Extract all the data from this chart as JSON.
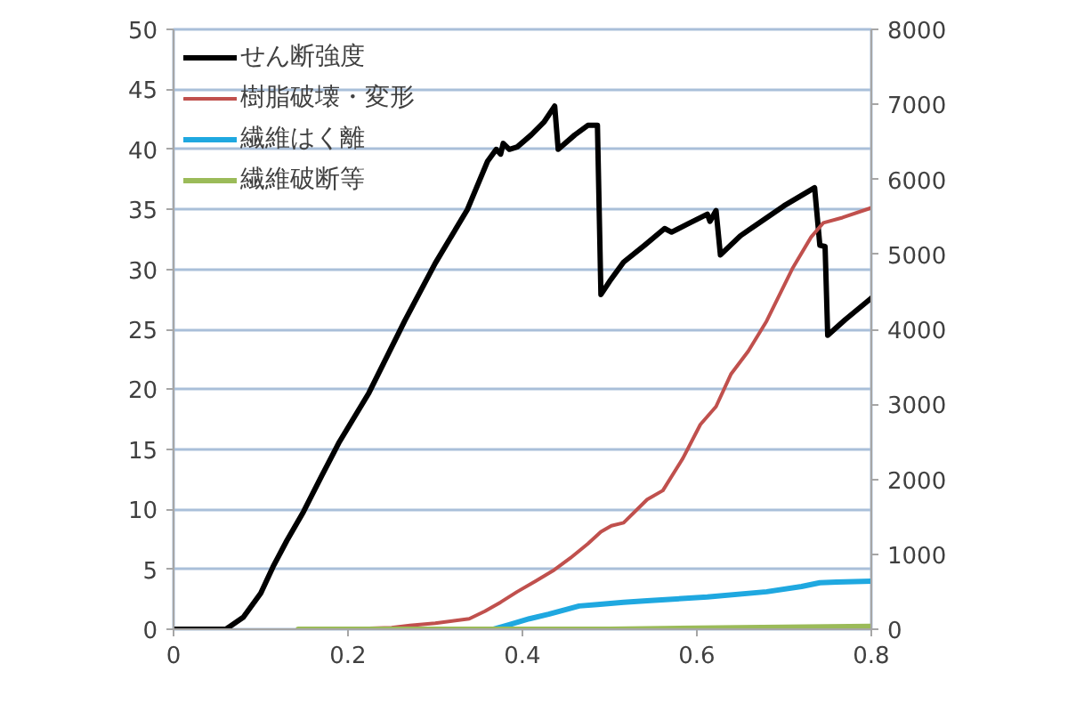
{
  "chart_data": {
    "type": "line",
    "legend": "top left",
    "grid": "y",
    "xlim": [
      0,
      0.8
    ],
    "xticks": [
      0,
      0.2,
      0.4,
      0.6,
      0.8
    ],
    "ylim": [
      0,
      50
    ],
    "yticks": [
      0,
      5,
      10,
      15,
      20,
      25,
      30,
      35,
      40,
      45,
      50
    ],
    "y2lim": [
      0,
      8000
    ],
    "y2ticks": [
      0,
      1000,
      2000,
      3000,
      4000,
      5000,
      6000,
      7000,
      8000
    ],
    "series": [
      {
        "name": "せん断強度",
        "color": "#000000",
        "x": [
          0,
          0.06,
          0.08,
          0.1,
          0.114,
          0.13,
          0.149,
          0.17,
          0.19,
          0.224,
          0.265,
          0.3,
          0.337,
          0.36,
          0.37,
          0.375,
          0.378,
          0.385,
          0.394,
          0.41,
          0.425,
          0.437,
          0.441,
          0.46,
          0.475,
          0.486,
          0.49,
          0.5,
          0.516,
          0.54,
          0.563,
          0.571,
          0.59,
          0.612,
          0.615,
          0.622,
          0.627,
          0.65,
          0.7,
          0.735,
          0.741,
          0.747,
          0.75,
          0.77,
          0.8
        ],
        "values": [
          0,
          0,
          1.0,
          3.0,
          5.2,
          7.4,
          9.8,
          12.8,
          15.6,
          19.7,
          25.7,
          30.5,
          35.0,
          39.0,
          40.0,
          39.6,
          40.5,
          40.0,
          40.2,
          41.2,
          42.3,
          43.6,
          40.0,
          41.2,
          42.0,
          42.0,
          27.9,
          29.0,
          30.6,
          32.0,
          33.4,
          33.1,
          33.8,
          34.6,
          34.0,
          34.9,
          31.2,
          32.8,
          35.3,
          36.8,
          32.0,
          31.9,
          24.5,
          25.8,
          27.6
        ]
      },
      {
        "name": "樹脂破壊・変形",
        "color": "#c0504d",
        "axis": "y2",
        "x": [
          0.19,
          0.25,
          0.271,
          0.3,
          0.339,
          0.357,
          0.375,
          0.394,
          0.415,
          0.435,
          0.455,
          0.475,
          0.49,
          0.502,
          0.516,
          0.543,
          0.561,
          0.584,
          0.604,
          0.622,
          0.639,
          0.659,
          0.68,
          0.71,
          0.731,
          0.745,
          0.767,
          0.8
        ],
        "values": [
          0,
          20,
          50,
          80,
          140,
          240,
          360,
          500,
          640,
          780,
          950,
          1140,
          1300,
          1380,
          1420,
          1730,
          1850,
          2280,
          2730,
          2970,
          3400,
          3710,
          4110,
          4820,
          5230,
          5420,
          5490,
          5620
        ]
      },
      {
        "name": "繊維はく離",
        "color": "#1fa8e0",
        "axis": "y2",
        "x": [
          0.367,
          0.385,
          0.408,
          0.43,
          0.449,
          0.465,
          0.486,
          0.516,
          0.543,
          0.612,
          0.68,
          0.72,
          0.741,
          0.76,
          0.8
        ],
        "values": [
          0,
          60,
          140,
          200,
          260,
          310,
          330,
          360,
          380,
          430,
          500,
          570,
          620,
          630,
          640
        ]
      },
      {
        "name": "繊維破断等",
        "color": "#9bbb59",
        "axis": "y2",
        "x": [
          0.143,
          0.5,
          0.65,
          0.8
        ],
        "values": [
          0,
          0,
          20,
          40
        ]
      }
    ]
  }
}
